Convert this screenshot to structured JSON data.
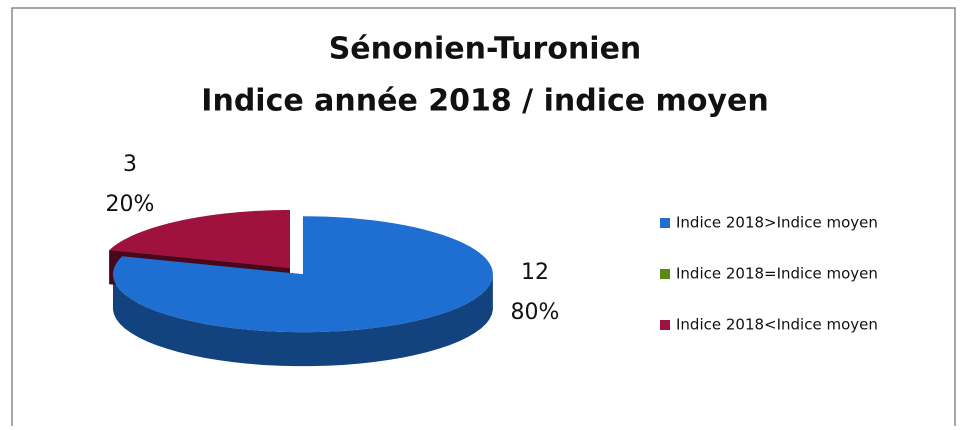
{
  "chart_data": {
    "type": "pie3d",
    "title": [
      "Sénonien-Turonien",
      "Indice année 2018 / indice moyen"
    ],
    "categories": [
      "Indice 2018>Indice moyen",
      "Indice 2018=Indice moyen",
      "Indice 2018<Indice moyen"
    ],
    "values": [
      12,
      0,
      3
    ],
    "percentages": [
      80,
      0,
      20
    ],
    "percent_labels": [
      "80%",
      null,
      "20%"
    ],
    "colors": [
      "#1f6fd2",
      "#5a8a12",
      "#a0123e"
    ],
    "legend": "right"
  }
}
